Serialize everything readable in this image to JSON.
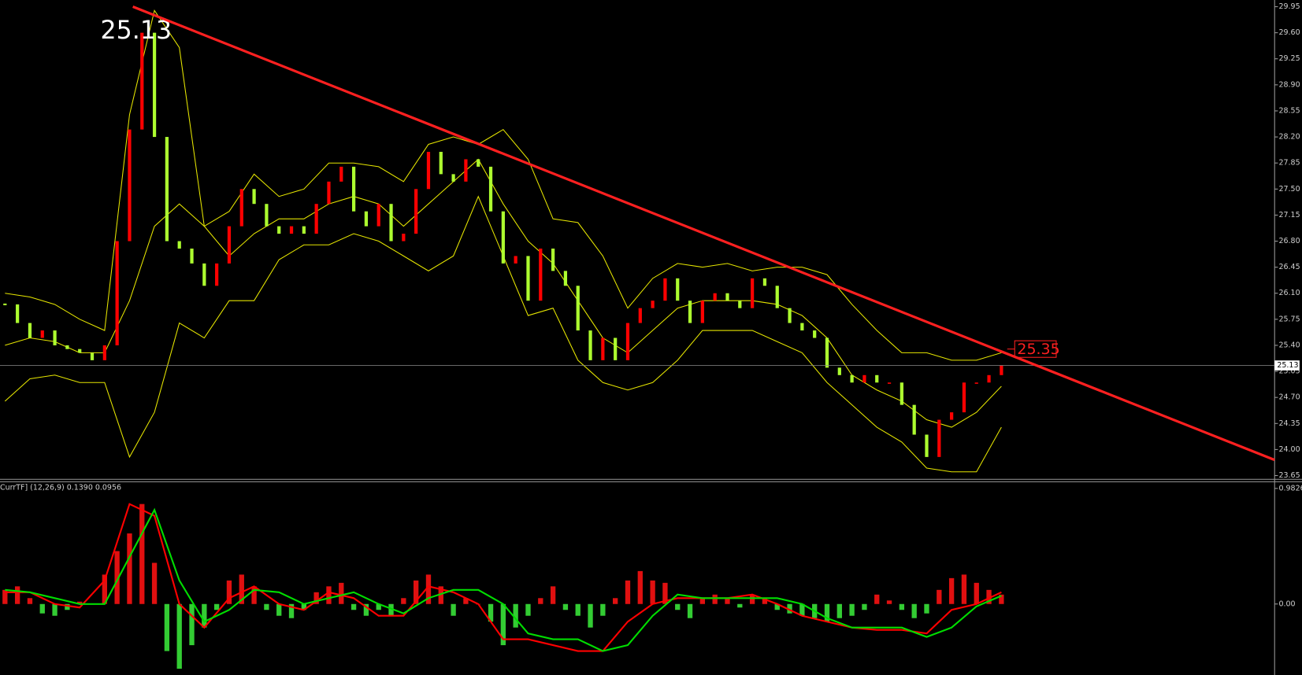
{
  "chart_data": [
    {
      "type": "candlestick",
      "close": [
        25.95,
        25.7,
        25.5,
        25.6,
        25.4,
        25.35,
        25.3,
        25.2,
        25.4,
        26.8,
        28.3,
        29.6,
        28.2,
        26.8,
        26.7,
        26.5,
        26.2,
        26.5,
        27.0,
        27.5,
        27.3,
        27.0,
        26.9,
        27.0,
        26.9,
        27.3,
        27.6,
        27.8,
        27.2,
        27.0,
        27.3,
        26.8,
        26.9,
        27.5,
        28.0,
        27.7,
        27.6,
        27.9,
        27.8,
        27.2,
        26.5,
        26.6,
        26.0,
        26.7,
        26.4,
        26.2,
        25.6,
        25.2,
        25.5,
        25.2,
        25.7,
        25.9,
        26.0,
        26.3,
        26.0,
        25.7,
        26.0,
        26.1,
        26.0,
        25.9,
        26.3,
        26.2,
        25.9,
        25.7,
        25.6,
        25.5,
        25.1,
        25.0,
        24.9,
        25.0,
        24.9,
        24.9,
        24.6,
        24.2,
        23.9,
        24.4,
        24.5,
        24.9,
        24.9,
        25.0,
        25.13
      ],
      "up_color": "#ff0000",
      "down_color": "#adff2f",
      "bands": {
        "color": "#e6e600",
        "upper": [
          26.1,
          26.05,
          25.95,
          25.75,
          25.6,
          28.5,
          29.9,
          29.4,
          27.0,
          27.2,
          27.7,
          27.4,
          27.5,
          27.85,
          27.85,
          27.8,
          27.6,
          28.1,
          28.2,
          28.1,
          28.3,
          27.9,
          27.1,
          27.05,
          26.6,
          25.9,
          26.3,
          26.5,
          26.45,
          26.5,
          26.4,
          26.45,
          26.45,
          26.35,
          25.95,
          25.6,
          25.3,
          25.3,
          25.2,
          25.2,
          25.3
        ],
        "middle": [
          25.4,
          25.5,
          25.45,
          25.3,
          25.3,
          26.0,
          27.0,
          27.3,
          27.0,
          26.6,
          26.9,
          27.1,
          27.1,
          27.3,
          27.4,
          27.3,
          27.0,
          27.3,
          27.6,
          27.9,
          27.3,
          26.8,
          26.5,
          26.0,
          25.5,
          25.3,
          25.6,
          25.9,
          26.0,
          26.0,
          26.0,
          25.95,
          25.8,
          25.5,
          25.0,
          24.8,
          24.65,
          24.4,
          24.3,
          24.5,
          24.85
        ],
        "lower": [
          24.65,
          24.95,
          25.0,
          24.9,
          24.9,
          23.9,
          24.5,
          25.7,
          25.5,
          26.0,
          26.0,
          26.55,
          26.75,
          26.75,
          26.9,
          26.8,
          26.6,
          26.4,
          26.6,
          27.4,
          26.6,
          25.8,
          25.9,
          25.2,
          24.9,
          24.8,
          24.9,
          25.2,
          25.6,
          25.6,
          25.6,
          25.45,
          25.3,
          24.9,
          24.6,
          24.3,
          24.1,
          23.75,
          23.7,
          23.7,
          24.3
        ]
      },
      "ylim": [
        23.6,
        30.04
      ],
      "yticks": [
        {
          "value": 29.95,
          "label": "29.95"
        },
        {
          "value": 29.6,
          "label": "29.60"
        },
        {
          "value": 29.25,
          "label": "29.25"
        },
        {
          "value": 28.9,
          "label": "28.90"
        },
        {
          "value": 28.55,
          "label": "28.55"
        },
        {
          "value": 28.2,
          "label": "28.20"
        },
        {
          "value": 27.85,
          "label": "27.85"
        },
        {
          "value": 27.5,
          "label": "27.50"
        },
        {
          "value": 27.15,
          "label": "27.15"
        },
        {
          "value": 26.8,
          "label": "26.80"
        },
        {
          "value": 26.45,
          "label": "26.45"
        },
        {
          "value": 26.1,
          "label": "26.10"
        },
        {
          "value": 25.75,
          "label": "25.75"
        },
        {
          "value": 25.4,
          "label": "25.40"
        },
        {
          "value": 25.05,
          "label": "25.05"
        },
        {
          "value": 24.7,
          "label": "24.70"
        },
        {
          "value": 24.35,
          "label": "24.35"
        },
        {
          "value": 24.0,
          "label": "24.00"
        },
        {
          "value": 23.65,
          "label": "23.65"
        }
      ],
      "last_price": 25.13,
      "trendline": {
        "start": 29.95,
        "end": 23.86,
        "color": "#ff2020",
        "label": 25.35
      }
    },
    {
      "type": "macd",
      "label": "CurrTF] (12,26,9) 0.1390 0.0956",
      "histogram": [
        0.12,
        0.15,
        0.05,
        -0.08,
        -0.1,
        -0.05,
        0.02,
        0.0,
        0.25,
        0.45,
        0.6,
        0.85,
        0.35,
        -0.4,
        -0.55,
        -0.35,
        -0.2,
        -0.05,
        0.2,
        0.25,
        0.15,
        -0.05,
        -0.1,
        -0.12,
        -0.05,
        0.1,
        0.15,
        0.18,
        -0.05,
        -0.1,
        -0.05,
        -0.1,
        0.05,
        0.2,
        0.25,
        0.15,
        -0.1,
        0.05,
        0.0,
        -0.15,
        -0.35,
        -0.2,
        -0.1,
        0.05,
        0.15,
        -0.05,
        -0.1,
        -0.2,
        -0.1,
        0.05,
        0.2,
        0.28,
        0.2,
        0.18,
        -0.05,
        -0.12,
        0.05,
        0.08,
        0.05,
        -0.03,
        0.08,
        0.05,
        -0.05,
        -0.08,
        -0.1,
        -0.12,
        -0.15,
        -0.12,
        -0.1,
        -0.05,
        0.08,
        0.03,
        -0.05,
        -0.12,
        -0.08,
        0.12,
        0.22,
        0.25,
        0.18,
        0.12,
        0.08
      ],
      "up_color": "#e01010",
      "down_color": "#33cc33",
      "series": [
        {
          "color": "#ff0000",
          "values": [
            0.1,
            0.1,
            0.0,
            -0.03,
            0.2,
            0.85,
            0.75,
            0.0,
            -0.2,
            0.05,
            0.15,
            0.0,
            -0.05,
            0.1,
            0.05,
            -0.1,
            -0.1,
            0.15,
            0.1,
            0.0,
            -0.3,
            -0.3,
            -0.35,
            -0.4,
            -0.4,
            -0.15,
            0.0,
            0.05,
            0.05,
            0.05,
            0.08,
            0.0,
            -0.1,
            -0.15,
            -0.2,
            -0.22,
            -0.22,
            -0.25,
            -0.05,
            0.0,
            0.1
          ]
        },
        {
          "color": "#00dd00",
          "values": [
            0.12,
            0.1,
            0.05,
            0.0,
            0.0,
            0.4,
            0.8,
            0.2,
            -0.15,
            -0.05,
            0.12,
            0.1,
            0.0,
            0.05,
            0.1,
            0.0,
            -0.08,
            0.05,
            0.12,
            0.12,
            0.0,
            -0.25,
            -0.3,
            -0.3,
            -0.4,
            -0.35,
            -0.1,
            0.08,
            0.05,
            0.05,
            0.05,
            0.05,
            0.0,
            -0.12,
            -0.2,
            -0.2,
            -0.2,
            -0.28,
            -0.2,
            -0.02,
            0.07
          ]
        }
      ],
      "ylim": [
        -0.6035,
        1.039
      ],
      "yticks": [
        {
          "value": 0.9826,
          "label": "0.9826"
        },
        {
          "value": 0,
          "label": "0.00"
        }
      ]
    }
  ]
}
